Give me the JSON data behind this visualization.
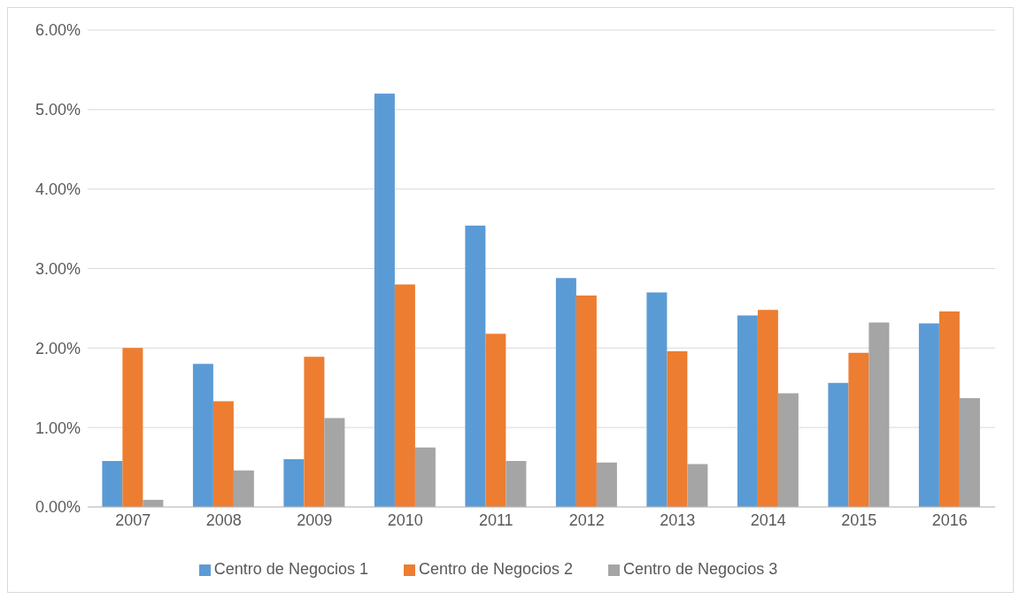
{
  "chart_data": {
    "type": "bar",
    "categories": [
      "2007",
      "2008",
      "2009",
      "2010",
      "2011",
      "2012",
      "2013",
      "2014",
      "2015",
      "2016"
    ],
    "series": [
      {
        "name": "Centro de Negocios 1",
        "color": "#5b9bd5",
        "values": [
          0.58,
          1.8,
          0.6,
          5.2,
          3.54,
          2.88,
          2.7,
          2.41,
          1.56,
          2.31
        ]
      },
      {
        "name": "Centro de Negocios 2",
        "color": "#ed7d31",
        "values": [
          2.0,
          1.33,
          1.89,
          2.8,
          2.18,
          2.66,
          1.96,
          2.48,
          1.94,
          2.46
        ]
      },
      {
        "name": "Centro de Negocios 3",
        "color": "#a5a5a5",
        "values": [
          0.09,
          0.46,
          1.12,
          0.75,
          0.58,
          0.56,
          0.54,
          1.43,
          2.32,
          1.37
        ]
      }
    ],
    "ylim": [
      0,
      6
    ],
    "yticks": [
      {
        "value": 0,
        "label": "0.00%"
      },
      {
        "value": 1,
        "label": "1.00%"
      },
      {
        "value": 2,
        "label": "2.00%"
      },
      {
        "value": 3,
        "label": "3.00%"
      },
      {
        "value": 4,
        "label": "4.00%"
      },
      {
        "value": 5,
        "label": "5.00%"
      },
      {
        "value": 6,
        "label": "6.00%"
      }
    ],
    "grid": "y",
    "legend": "bottom"
  }
}
